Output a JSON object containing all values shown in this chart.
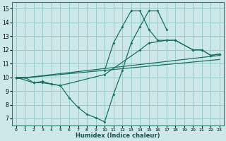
{
  "background_color": "#cce8e8",
  "grid_color": "#99cccc",
  "line_color": "#1a7060",
  "xlabel": "Humidex (Indice chaleur)",
  "xlim": [
    -0.5,
    23.5
  ],
  "ylim": [
    6.5,
    15.5
  ],
  "xtick_vals": [
    0,
    1,
    2,
    3,
    4,
    5,
    6,
    7,
    8,
    9,
    10,
    11,
    12,
    13,
    14,
    15,
    16,
    17,
    18,
    19,
    20,
    21,
    22,
    23
  ],
  "ytick_vals": [
    7,
    8,
    9,
    10,
    11,
    12,
    13,
    14,
    15
  ],
  "line1_x": [
    0,
    1,
    2,
    3,
    4,
    5,
    6,
    7,
    8,
    9,
    10,
    11,
    12,
    13,
    14,
    15,
    16,
    17
  ],
  "line1_y": [
    10,
    10,
    9.6,
    9.6,
    9.5,
    9.4,
    8.5,
    7.8,
    7.3,
    7.05,
    6.75,
    8.75,
    10.5,
    12.5,
    13.7,
    14.85,
    14.85,
    13.5
  ],
  "line2_x": [
    10,
    11,
    12,
    13,
    14,
    15,
    16,
    17,
    18,
    20,
    21,
    22,
    23
  ],
  "line2_y": [
    10.5,
    12.5,
    13.7,
    14.85,
    14.85,
    13.5,
    12.7,
    12.7,
    12.7,
    12.0,
    12.0,
    11.6,
    11.7
  ],
  "line3_x": [
    0,
    2,
    3,
    4,
    5,
    10,
    14,
    15,
    17,
    18,
    20,
    21,
    22,
    23
  ],
  "line3_y": [
    10,
    9.6,
    9.7,
    9.5,
    9.4,
    10.2,
    12.0,
    12.5,
    12.7,
    12.7,
    12.0,
    12.0,
    11.6,
    11.7
  ],
  "line4_x": [
    0,
    23
  ],
  "line4_y": [
    9.9,
    11.6
  ],
  "line5_x": [
    0,
    23
  ],
  "line5_y": [
    9.9,
    11.3
  ]
}
